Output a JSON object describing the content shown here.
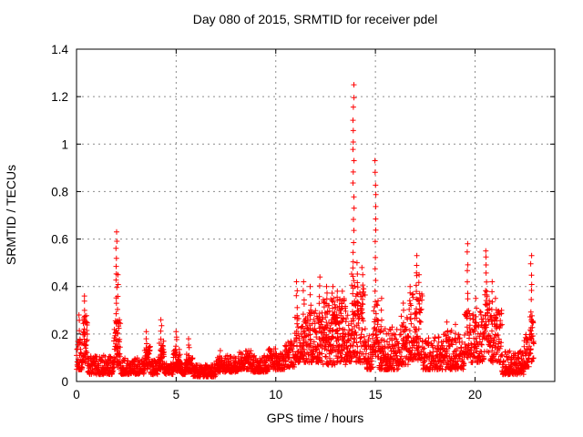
{
  "figure": {
    "title": "Day 080 of 2015, SRMTID for receiver pdel",
    "xlabel": "GPS time / hours",
    "ylabel": "SRMTID / TECUs"
  },
  "colors": {
    "marker": "#ff0000",
    "grid": "#8c8c8c",
    "axis": "#000000",
    "text": "#000000",
    "background": "#ffffff"
  },
  "chart_data": {
    "type": "scatter",
    "title": "Day 080 of 2015, SRMTID for receiver pdel",
    "xlabel": "GPS time / hours",
    "ylabel": "SRMTID / TECUs",
    "xlim": [
      0,
      24
    ],
    "ylim": [
      0,
      1.4
    ],
    "xticks": [
      0,
      5,
      10,
      15,
      20
    ],
    "xtick_labels": [
      "0",
      "5",
      "10",
      "15",
      "20"
    ],
    "yticks": [
      0,
      0.2,
      0.4,
      0.6,
      0.8,
      1.0,
      1.2,
      1.4
    ],
    "ytick_labels": [
      "0",
      "0.2",
      "0.4",
      "0.6",
      "0.8",
      "1",
      "1.2",
      "1.4"
    ],
    "grid": true,
    "grid_style": "dotted",
    "legend": "none",
    "marker": "plus",
    "marker_size": 7,
    "x_data_range": [
      0,
      22.95
    ],
    "notable_peaks": [
      {
        "t": 2.0,
        "v": 0.63
      },
      {
        "t": 11.0,
        "v": 0.42
      },
      {
        "t": 11.7,
        "v": 0.42
      },
      {
        "t": 13.9,
        "v": 1.25
      },
      {
        "t": 15.0,
        "v": 0.93
      },
      {
        "t": 17.05,
        "v": 0.53
      },
      {
        "t": 19.6,
        "v": 0.58
      },
      {
        "t": 20.55,
        "v": 0.55
      },
      {
        "t": 22.82,
        "v": 0.53
      }
    ],
    "baseline_segments": [
      [
        0.0,
        0.3,
        0.05,
        0.18,
        35,
        1.8
      ],
      [
        0.3,
        0.55,
        0.08,
        0.3,
        40,
        1.5
      ],
      [
        0.55,
        1.85,
        0.03,
        0.11,
        150,
        1.7
      ],
      [
        1.85,
        2.2,
        0.06,
        0.28,
        55,
        1.5
      ],
      [
        2.2,
        3.4,
        0.03,
        0.1,
        140,
        1.7
      ],
      [
        3.4,
        3.7,
        0.05,
        0.15,
        40,
        1.5
      ],
      [
        3.7,
        4.1,
        0.03,
        0.09,
        45,
        1.6
      ],
      [
        4.1,
        4.4,
        0.05,
        0.17,
        45,
        1.5
      ],
      [
        4.4,
        4.85,
        0.03,
        0.08,
        50,
        1.5
      ],
      [
        4.85,
        5.2,
        0.04,
        0.14,
        50,
        1.5
      ],
      [
        5.2,
        5.5,
        0.03,
        0.08,
        35,
        1.5
      ],
      [
        5.5,
        5.85,
        0.04,
        0.12,
        45,
        1.5
      ],
      [
        5.85,
        7.0,
        0.02,
        0.07,
        130,
        1.5
      ],
      [
        7.0,
        8.1,
        0.04,
        0.11,
        125,
        1.6
      ],
      [
        8.1,
        8.75,
        0.05,
        0.13,
        75,
        1.6
      ],
      [
        8.75,
        9.6,
        0.04,
        0.11,
        95,
        1.6
      ],
      [
        9.6,
        10.45,
        0.05,
        0.14,
        95,
        1.6
      ],
      [
        10.45,
        10.95,
        0.06,
        0.17,
        55,
        1.5
      ],
      [
        10.95,
        11.6,
        0.08,
        0.28,
        75,
        1.6
      ],
      [
        11.6,
        12.3,
        0.08,
        0.3,
        90,
        1.5
      ],
      [
        12.3,
        13.5,
        0.07,
        0.35,
        190,
        1.4
      ],
      [
        13.5,
        13.8,
        0.08,
        0.3,
        45,
        1.4
      ],
      [
        13.8,
        14.0,
        0.1,
        0.48,
        40,
        1.2
      ],
      [
        14.0,
        14.5,
        0.08,
        0.4,
        75,
        1.4
      ],
      [
        14.5,
        14.9,
        0.05,
        0.2,
        50,
        1.5
      ],
      [
        14.9,
        15.15,
        0.1,
        0.35,
        38,
        1.3
      ],
      [
        15.15,
        16.15,
        0.05,
        0.23,
        135,
        1.7
      ],
      [
        16.15,
        16.65,
        0.07,
        0.28,
        60,
        1.6
      ],
      [
        16.65,
        17.35,
        0.09,
        0.38,
        90,
        1.5
      ],
      [
        17.35,
        18.35,
        0.05,
        0.19,
        115,
        1.7
      ],
      [
        18.35,
        19.45,
        0.05,
        0.22,
        125,
        1.7
      ],
      [
        19.45,
        19.8,
        0.1,
        0.3,
        42,
        1.4
      ],
      [
        19.8,
        20.45,
        0.08,
        0.3,
        80,
        1.5
      ],
      [
        20.45,
        20.75,
        0.12,
        0.38,
        42,
        1.3
      ],
      [
        20.75,
        21.35,
        0.08,
        0.3,
        75,
        1.5
      ],
      [
        21.35,
        22.45,
        0.03,
        0.13,
        125,
        1.6
      ],
      [
        22.45,
        22.75,
        0.06,
        0.22,
        38,
        1.5
      ],
      [
        22.75,
        22.95,
        0.08,
        0.28,
        28,
        1.3
      ]
    ],
    "spike_columns": [
      [
        0.15,
        0.12,
        0.28,
        6
      ],
      [
        0.4,
        0.12,
        0.36,
        10
      ],
      [
        2.0,
        0.15,
        0.63,
        15
      ],
      [
        2.07,
        0.12,
        0.45,
        8
      ],
      [
        3.52,
        0.1,
        0.21,
        6
      ],
      [
        4.25,
        0.1,
        0.26,
        7
      ],
      [
        5.0,
        0.09,
        0.21,
        7
      ],
      [
        5.65,
        0.07,
        0.18,
        6
      ],
      [
        7.2,
        0.07,
        0.13,
        4
      ],
      [
        11.05,
        0.15,
        0.42,
        9
      ],
      [
        11.4,
        0.15,
        0.42,
        9
      ],
      [
        11.75,
        0.15,
        0.4,
        8
      ],
      [
        12.2,
        0.18,
        0.44,
        8
      ],
      [
        12.55,
        0.18,
        0.4,
        7
      ],
      [
        12.85,
        0.18,
        0.4,
        7
      ],
      [
        13.1,
        0.18,
        0.38,
        7
      ],
      [
        13.35,
        0.18,
        0.38,
        6
      ],
      [
        13.9,
        0.5,
        1.25,
        17
      ],
      [
        14.1,
        0.28,
        0.5,
        6
      ],
      [
        14.35,
        0.28,
        0.48,
        6
      ],
      [
        15.0,
        0.38,
        0.93,
        12
      ],
      [
        15.3,
        0.18,
        0.35,
        5
      ],
      [
        16.4,
        0.18,
        0.33,
        5
      ],
      [
        16.75,
        0.22,
        0.4,
        6
      ],
      [
        17.05,
        0.28,
        0.53,
        9
      ],
      [
        17.2,
        0.22,
        0.45,
        7
      ],
      [
        18.6,
        0.1,
        0.25,
        5
      ],
      [
        19.0,
        0.1,
        0.24,
        5
      ],
      [
        19.62,
        0.22,
        0.58,
        10
      ],
      [
        20.05,
        0.18,
        0.35,
        5
      ],
      [
        20.55,
        0.28,
        0.55,
        9
      ],
      [
        20.85,
        0.18,
        0.42,
        7
      ],
      [
        21.05,
        0.15,
        0.35,
        6
      ],
      [
        22.82,
        0.22,
        0.53,
        9
      ]
    ]
  }
}
